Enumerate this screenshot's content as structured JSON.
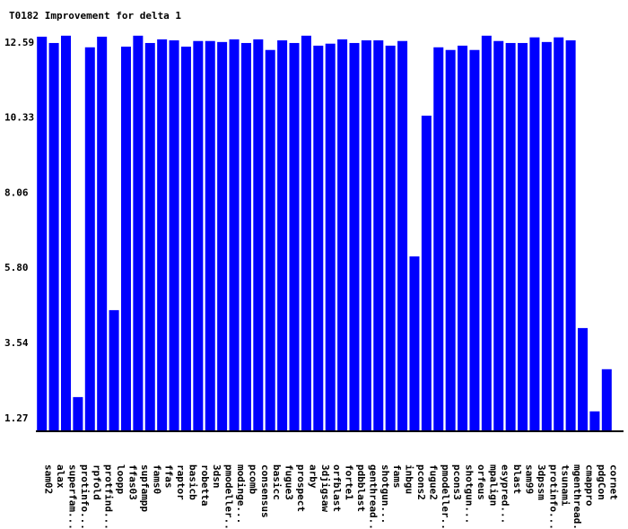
{
  "chart_data": {
    "type": "bar",
    "title": "T0182 Improvement for delta 1",
    "categories": [
      "sam02",
      "alax",
      "superfam...",
      "protinfo...",
      "rpfold",
      "protfind...",
      "loopp",
      "ffas03",
      "supfampp",
      "fams0",
      "ffas",
      "raptor",
      "basicb",
      "robetta",
      "3dsn",
      "pmodeller...",
      "modinge...",
      "pcomb",
      "consensus",
      "basicc",
      "fugue3",
      "prospect",
      "arby",
      "3djigsaw",
      "orfblast",
      "forte1",
      "pdbblast",
      "genthread...",
      "shotgun...",
      "fams",
      "inbgu",
      "pcons2",
      "fugue2",
      "pmodeller...",
      "pcons3",
      "shotgun...",
      "orfeus",
      "mpalign",
      "esypred...",
      "blast",
      "sam99",
      "3dpssm",
      "protinfo...",
      "tsunami",
      "mgenthread...",
      "cmappro",
      "pdgCon",
      "cornet"
    ],
    "values": [
      12.75,
      12.56,
      12.78,
      1.89,
      12.43,
      12.75,
      4.51,
      12.45,
      12.78,
      12.56,
      12.67,
      12.64,
      12.45,
      12.62,
      12.62,
      12.59,
      12.67,
      12.56,
      12.67,
      12.35,
      12.64,
      12.56,
      12.78,
      12.48,
      12.54,
      12.67,
      12.56,
      12.64,
      12.64,
      12.48,
      12.62,
      6.13,
      10.37,
      12.43,
      12.35,
      12.48,
      12.35,
      12.78,
      12.62,
      12.56,
      12.56,
      12.73,
      12.59,
      12.73,
      12.64,
      3.97,
      1.46,
      2.73
    ],
    "color": "#0000ff",
    "ylim": [
      0.86,
      12.91
    ],
    "yticks": [
      1.27,
      3.54,
      {
        "value": 5.8,
        "label": "5.80"
      },
      8.06,
      10.33,
      12.59
    ]
  }
}
